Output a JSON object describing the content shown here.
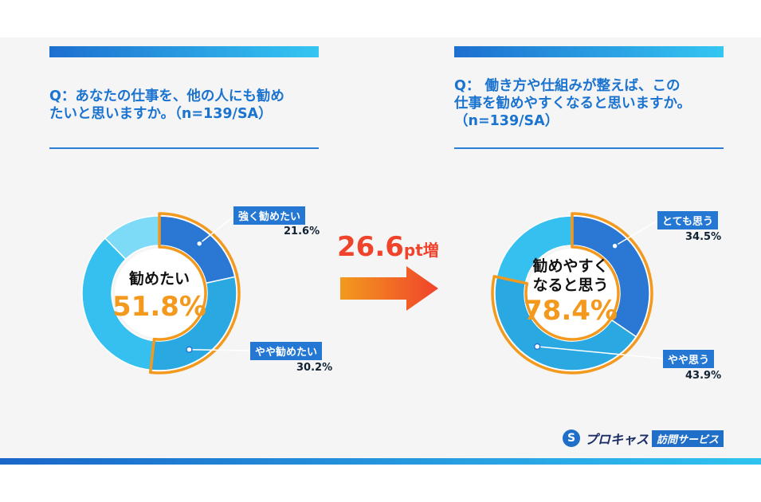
{
  "left": {
    "question_lines": [
      "Q：あなたの仕事を、他の人にも勧め",
      "たいと思いますか。（n=139/SA）"
    ],
    "center_label_lines": [
      "勧めたい"
    ],
    "center_value": "51.8%",
    "callouts": [
      {
        "label": "強く勧めたい",
        "value": "21.6%"
      },
      {
        "label": "やや勧めたい",
        "value": "30.2%"
      }
    ]
  },
  "right": {
    "question_lines": [
      "Q： 働き方や仕組みが整えば、この",
      "仕事を勧めやすくなると思いますか。",
      "（n=139/SA）"
    ],
    "center_label_lines": [
      "勧めやすく",
      "なると思う"
    ],
    "center_value": "78.4%",
    "callouts": [
      {
        "label": "とても思う",
        "value": "34.5%"
      },
      {
        "label": "やや思う",
        "value": "43.9%"
      }
    ]
  },
  "arrow_text": {
    "number": "26.6",
    "suffix": "pt増"
  },
  "logo": {
    "name": "プロキャス",
    "badge": "訪問サービス",
    "mark": "S"
  },
  "colors": {
    "dark_blue": "#2a78d4",
    "mid_blue": "#2aa8e2",
    "light_blue": "#35c0f0",
    "pale_blue": "#7ddbf8",
    "highlight": "#f39a1e",
    "arrow": "#f0432b"
  },
  "chart_data": [
    {
      "type": "pie",
      "title": "",
      "categories": [
        "強く勧めたい",
        "やや勧めたい",
        "",
        ""
      ],
      "values": [
        21.6,
        30.2,
        35.8,
        12.4
      ],
      "total_highlight": 51.8
    },
    {
      "type": "pie",
      "title": "",
      "categories": [
        "とても思う",
        "やや思う",
        ""
      ],
      "values": [
        34.5,
        43.9,
        21.6
      ],
      "total_highlight": 78.4
    }
  ]
}
